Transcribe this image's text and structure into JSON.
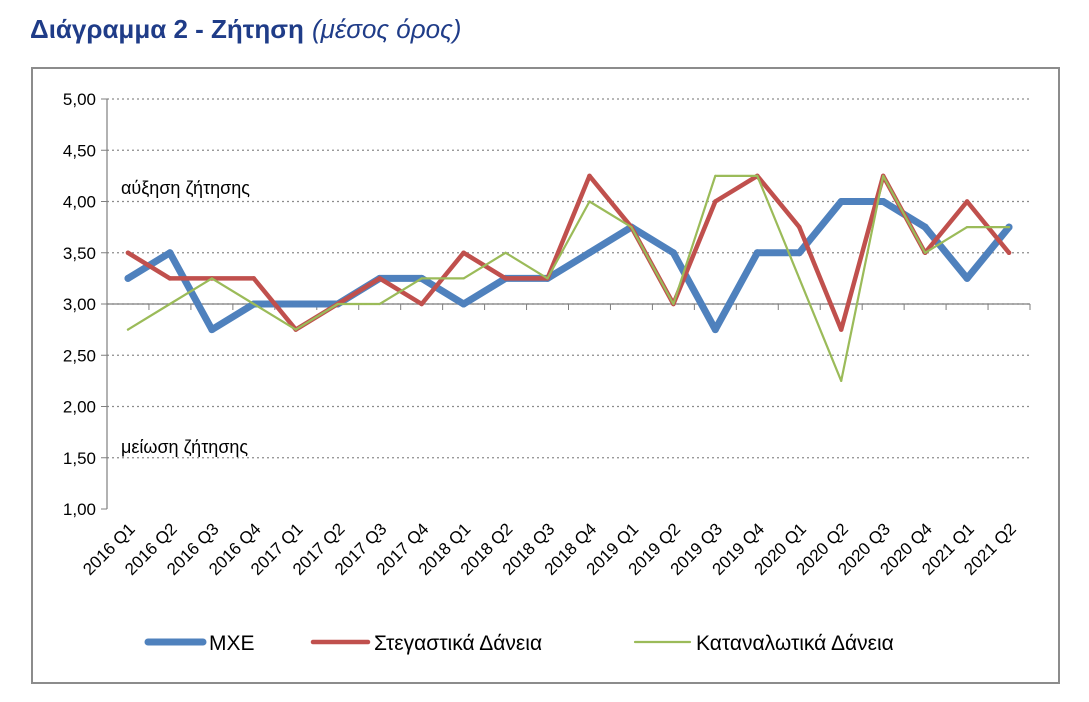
{
  "title": {
    "main": "Διάγραμμα 2 - Ζήτηση",
    "sub": "(μέσος όρος)"
  },
  "chart_data": {
    "type": "line",
    "categories": [
      "2016 Q1",
      "2016 Q2",
      "2016 Q3",
      "2016 Q4",
      "2017 Q1",
      "2017 Q2",
      "2017 Q3",
      "2017 Q4",
      "2018 Q1",
      "2018 Q2",
      "2018 Q3",
      "2018 Q4",
      "2019 Q1",
      "2019 Q2",
      "2019 Q3",
      "2019 Q4",
      "2020 Q1",
      "2020 Q2",
      "2020 Q3",
      "2020 Q4",
      "2021 Q1",
      "2021 Q2"
    ],
    "y_ticks": [
      "1,00",
      "1,50",
      "2,00",
      "2,50",
      "3,00",
      "3,50",
      "4,00",
      "4,50",
      "5,00"
    ],
    "ylim": [
      1.0,
      5.0
    ],
    "y_tick_step": 0.5,
    "grid": "horizontal dotted",
    "legend_position": "bottom",
    "annotations": {
      "upper": "αύξηση ζήτησης",
      "lower": "μείωση ζήτησης"
    },
    "series": [
      {
        "name": "ΜΧΕ",
        "color": "#4f81bd",
        "values": [
          3.25,
          3.5,
          2.75,
          3.0,
          3.0,
          3.0,
          3.25,
          3.25,
          3.0,
          3.25,
          3.25,
          3.5,
          3.75,
          3.5,
          2.75,
          3.5,
          3.5,
          4.0,
          4.0,
          3.75,
          3.25,
          3.75
        ]
      },
      {
        "name": "Στεγαστικά Δάνεια",
        "color": "#c0504d",
        "values": [
          3.5,
          3.25,
          3.25,
          3.25,
          2.75,
          3.0,
          3.25,
          3.0,
          3.5,
          3.25,
          3.25,
          4.25,
          3.75,
          3.0,
          4.0,
          4.25,
          3.75,
          2.75,
          4.25,
          3.5,
          4.0,
          3.5
        ]
      },
      {
        "name": "Καταναλωτικά Δάνεια",
        "color": "#9bbb59",
        "values": [
          2.75,
          3.0,
          3.25,
          3.0,
          2.75,
          3.0,
          3.0,
          3.25,
          3.25,
          3.5,
          3.25,
          4.0,
          3.75,
          3.0,
          4.25,
          4.25,
          3.25,
          2.25,
          4.25,
          3.5,
          3.75,
          3.75
        ]
      }
    ]
  }
}
